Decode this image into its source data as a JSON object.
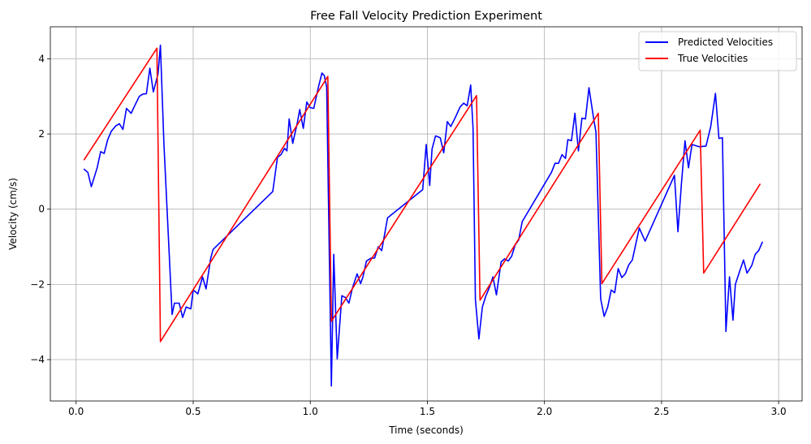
{
  "chart_data": {
    "type": "line",
    "title": "Free Fall Velocity Prediction Experiment",
    "xlabel": "Time (seconds)",
    "ylabel": "Velocity (cm/s)",
    "xlim": [
      -0.11,
      3.1
    ],
    "ylim": [
      -5.1,
      4.85
    ],
    "xticks": [
      0.0,
      0.5,
      1.0,
      1.5,
      2.0,
      2.5,
      3.0
    ],
    "xtick_labels": [
      "0.0",
      "0.5",
      "1.0",
      "1.5",
      "2.0",
      "2.5",
      "3.0"
    ],
    "yticks": [
      -4,
      -2,
      0,
      2,
      4
    ],
    "ytick_labels": [
      "−4",
      "−2",
      "0",
      "2",
      "4"
    ],
    "grid": true,
    "legend_position": "top-right",
    "colors": {
      "predicted": "#0000ff",
      "true": "#ff0000"
    },
    "series": [
      {
        "name": "Predicted Velocities",
        "color": "#0000ff",
        "points": [
          [
            0.035,
            1.06
          ],
          [
            0.05,
            0.98
          ],
          [
            0.065,
            0.6
          ],
          [
            0.09,
            1.1
          ],
          [
            0.105,
            1.53
          ],
          [
            0.12,
            1.48
          ],
          [
            0.135,
            1.85
          ],
          [
            0.15,
            2.07
          ],
          [
            0.17,
            2.22
          ],
          [
            0.185,
            2.27
          ],
          [
            0.2,
            2.12
          ],
          [
            0.215,
            2.68
          ],
          [
            0.235,
            2.55
          ],
          [
            0.25,
            2.75
          ],
          [
            0.27,
            3.0
          ],
          [
            0.285,
            3.06
          ],
          [
            0.3,
            3.07
          ],
          [
            0.315,
            3.75
          ],
          [
            0.33,
            3.12
          ],
          [
            0.35,
            3.6
          ],
          [
            0.36,
            4.36
          ],
          [
            0.375,
            1.75
          ],
          [
            0.41,
            -2.8
          ],
          [
            0.42,
            -2.5
          ],
          [
            0.44,
            -2.5
          ],
          [
            0.455,
            -2.88
          ],
          [
            0.47,
            -2.6
          ],
          [
            0.49,
            -2.65
          ],
          [
            0.5,
            -2.15
          ],
          [
            0.52,
            -2.25
          ],
          [
            0.54,
            -1.8
          ],
          [
            0.555,
            -2.12
          ],
          [
            0.575,
            -1.3
          ],
          [
            0.585,
            -1.07
          ],
          [
            0.84,
            0.47
          ],
          [
            0.86,
            1.38
          ],
          [
            0.875,
            1.45
          ],
          [
            0.89,
            1.62
          ],
          [
            0.9,
            1.55
          ],
          [
            0.91,
            2.4
          ],
          [
            0.925,
            1.75
          ],
          [
            0.945,
            2.3
          ],
          [
            0.955,
            2.65
          ],
          [
            0.97,
            2.15
          ],
          [
            0.985,
            2.85
          ],
          [
            1.0,
            2.7
          ],
          [
            1.015,
            2.68
          ],
          [
            1.035,
            3.25
          ],
          [
            1.05,
            3.62
          ],
          [
            1.06,
            3.55
          ],
          [
            1.07,
            3.25
          ],
          [
            1.09,
            -4.7
          ],
          [
            1.1,
            -1.2
          ],
          [
            1.115,
            -3.98
          ],
          [
            1.135,
            -2.3
          ],
          [
            1.15,
            -2.35
          ],
          [
            1.165,
            -2.5
          ],
          [
            1.18,
            -2.1
          ],
          [
            1.2,
            -1.72
          ],
          [
            1.215,
            -1.98
          ],
          [
            1.225,
            -1.8
          ],
          [
            1.24,
            -1.38
          ],
          [
            1.26,
            -1.3
          ],
          [
            1.275,
            -1.3
          ],
          [
            1.29,
            -1.0
          ],
          [
            1.305,
            -1.1
          ],
          [
            1.33,
            -0.23
          ],
          [
            1.48,
            0.52
          ],
          [
            1.495,
            1.72
          ],
          [
            1.51,
            0.63
          ],
          [
            1.52,
            1.6
          ],
          [
            1.535,
            1.95
          ],
          [
            1.555,
            1.9
          ],
          [
            1.57,
            1.5
          ],
          [
            1.585,
            2.33
          ],
          [
            1.6,
            2.2
          ],
          [
            1.62,
            2.45
          ],
          [
            1.64,
            2.72
          ],
          [
            1.655,
            2.82
          ],
          [
            1.67,
            2.75
          ],
          [
            1.685,
            3.3
          ],
          [
            1.695,
            2.15
          ],
          [
            1.705,
            -2.4
          ],
          [
            1.72,
            -3.45
          ],
          [
            1.735,
            -2.6
          ],
          [
            1.75,
            -2.3
          ],
          [
            1.765,
            -2.08
          ],
          [
            1.78,
            -1.8
          ],
          [
            1.795,
            -2.28
          ],
          [
            1.815,
            -1.4
          ],
          [
            1.83,
            -1.32
          ],
          [
            1.845,
            -1.38
          ],
          [
            1.86,
            -1.25
          ],
          [
            1.875,
            -0.95
          ],
          [
            1.89,
            -0.82
          ],
          [
            1.905,
            -0.33
          ],
          [
            2.03,
            0.98
          ],
          [
            2.045,
            1.22
          ],
          [
            2.06,
            1.22
          ],
          [
            2.075,
            1.45
          ],
          [
            2.09,
            1.35
          ],
          [
            2.1,
            1.85
          ],
          [
            2.115,
            1.82
          ],
          [
            2.13,
            2.55
          ],
          [
            2.145,
            1.55
          ],
          [
            2.16,
            2.42
          ],
          [
            2.175,
            2.4
          ],
          [
            2.19,
            3.23
          ],
          [
            2.21,
            2.4
          ],
          [
            2.22,
            2.05
          ],
          [
            2.24,
            -2.38
          ],
          [
            2.255,
            -2.85
          ],
          [
            2.27,
            -2.6
          ],
          [
            2.285,
            -2.15
          ],
          [
            2.3,
            -2.22
          ],
          [
            2.315,
            -1.58
          ],
          [
            2.33,
            -1.82
          ],
          [
            2.345,
            -1.72
          ],
          [
            2.36,
            -1.48
          ],
          [
            2.375,
            -1.35
          ],
          [
            2.405,
            -0.5
          ],
          [
            2.43,
            -0.85
          ],
          [
            2.555,
            0.9
          ],
          [
            2.57,
            -0.6
          ],
          [
            2.585,
            0.68
          ],
          [
            2.6,
            1.82
          ],
          [
            2.615,
            1.1
          ],
          [
            2.63,
            1.72
          ],
          [
            2.66,
            1.66
          ],
          [
            2.69,
            1.68
          ],
          [
            2.71,
            2.2
          ],
          [
            2.73,
            3.08
          ],
          [
            2.745,
            1.88
          ],
          [
            2.76,
            1.9
          ],
          [
            2.775,
            -3.25
          ],
          [
            2.79,
            -1.8
          ],
          [
            2.805,
            -2.95
          ],
          [
            2.815,
            -2.0
          ],
          [
            2.835,
            -1.62
          ],
          [
            2.85,
            -1.35
          ],
          [
            2.865,
            -1.7
          ],
          [
            2.885,
            -1.5
          ],
          [
            2.9,
            -1.2
          ],
          [
            2.915,
            -1.1
          ],
          [
            2.93,
            -0.88
          ]
        ]
      },
      {
        "name": "True Velocities",
        "color": "#ff0000",
        "points": [
          [
            0.035,
            1.32
          ],
          [
            0.345,
            4.28
          ],
          [
            0.36,
            -3.52
          ],
          [
            1.075,
            3.53
          ],
          [
            1.09,
            -2.98
          ],
          [
            1.71,
            3.02
          ],
          [
            1.725,
            -2.42
          ],
          [
            2.23,
            2.55
          ],
          [
            2.245,
            -1.98
          ],
          [
            2.665,
            2.1
          ],
          [
            2.68,
            -1.7
          ],
          [
            2.92,
            0.66
          ]
        ]
      }
    ]
  }
}
